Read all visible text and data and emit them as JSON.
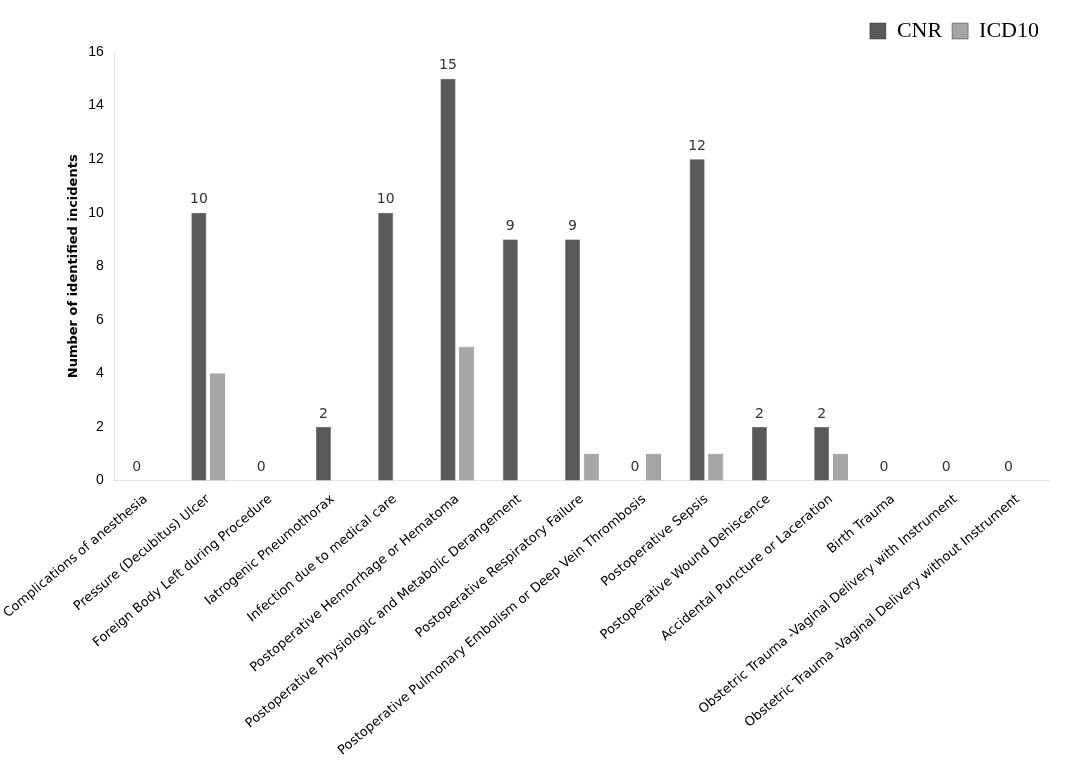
{
  "chart_data": {
    "type": "bar",
    "ylabel": "Number of identified incidents",
    "categories": [
      "Complications of anesthesia",
      "Pressure (Decubitus) Ulcer",
      "Foreign Body Left during Procedure",
      "Iatrogenic Pneumothorax",
      "Infection due to medical care",
      "Postoperative Hemorrhage or Hematoma",
      "Postoperative Physiologic and Metabolic Derangement",
      "Postoperative Respiratory Failure",
      "Postoperative Pulmonary Embolism or Deep Vein Thrombosis",
      "Postoperative Sepsis",
      "Postoperative Wound Dehiscence",
      "Accidental Puncture or Laceration",
      "Birth Trauma",
      "Obstetric Trauma -Vaginal Delivery with Instrument",
      "Obstetric Trauma -Vaginal Delivery without Instrument"
    ],
    "series": [
      {
        "name": "CNR",
        "color": "#595959",
        "values": [
          0,
          10,
          0,
          2,
          10,
          15,
          9,
          9,
          0,
          12,
          2,
          2,
          0,
          0,
          0
        ],
        "value_labels": [
          "0",
          "10",
          "0",
          "2",
          "10",
          "15",
          "9",
          "9",
          "0",
          "12",
          "2",
          "2",
          "0",
          "0",
          "0"
        ]
      },
      {
        "name": "ICD10",
        "color": "#a6a6a6",
        "values": [
          0,
          4,
          0,
          0,
          0,
          5,
          0,
          1,
          1,
          1,
          0,
          1,
          0,
          0,
          0
        ]
      }
    ],
    "ylim": [
      0,
      16
    ],
    "yticks": [
      0,
      2,
      4,
      6,
      8,
      10,
      12,
      14,
      16
    ],
    "grid": false,
    "legend": "top right"
  }
}
